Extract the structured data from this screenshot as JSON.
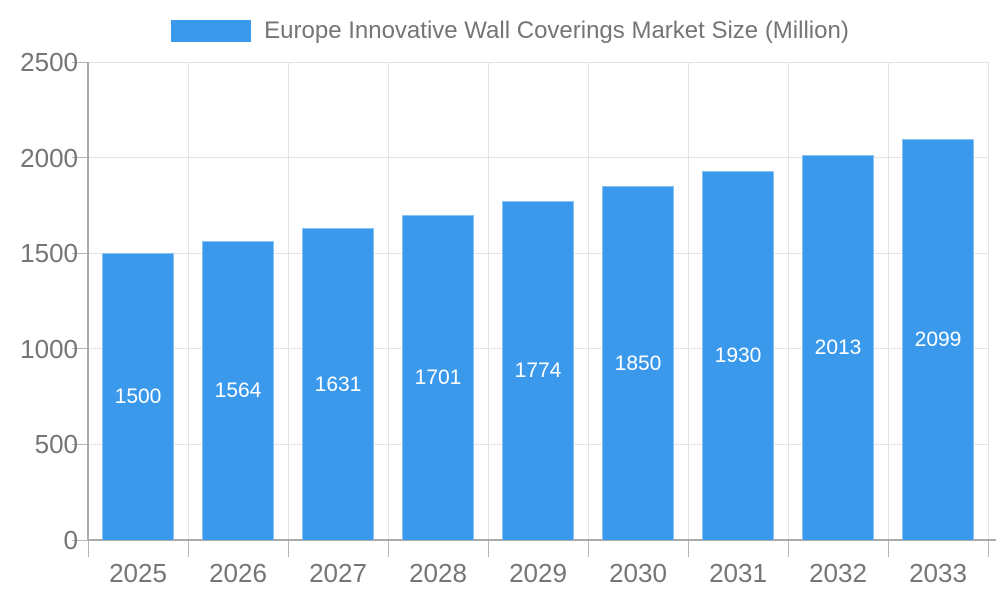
{
  "chart_data": {
    "type": "bar",
    "title": "Europe Innovative Wall Coverings Market Size (Million)",
    "legend_position": "top",
    "legend_entries": [
      "Europe Innovative Wall Coverings Market Size (Million)"
    ],
    "categories": [
      "2025",
      "2026",
      "2027",
      "2028",
      "2029",
      "2030",
      "2031",
      "2032",
      "2033"
    ],
    "series": [
      {
        "name": "Europe Innovative Wall Coverings Market Size (Million)",
        "values": [
          1500,
          1564,
          1631,
          1701,
          1774,
          1850,
          1930,
          2013,
          2099
        ]
      }
    ],
    "value_labels_visible": true,
    "value_label_position": "inside-center",
    "xlabel": "",
    "ylabel": "",
    "ylim": [
      0,
      2500
    ],
    "y_ticks": [
      0,
      500,
      1000,
      1500,
      2000,
      2500
    ],
    "grid": true
  },
  "colors": {
    "bar": "#3B99EC",
    "grid": "#E3E3E3",
    "axis": "#ABABAB",
    "tick": "#B5B5B5",
    "text": "#757575",
    "value_label": "#FFFFFF",
    "background": "#FFFFFF"
  }
}
